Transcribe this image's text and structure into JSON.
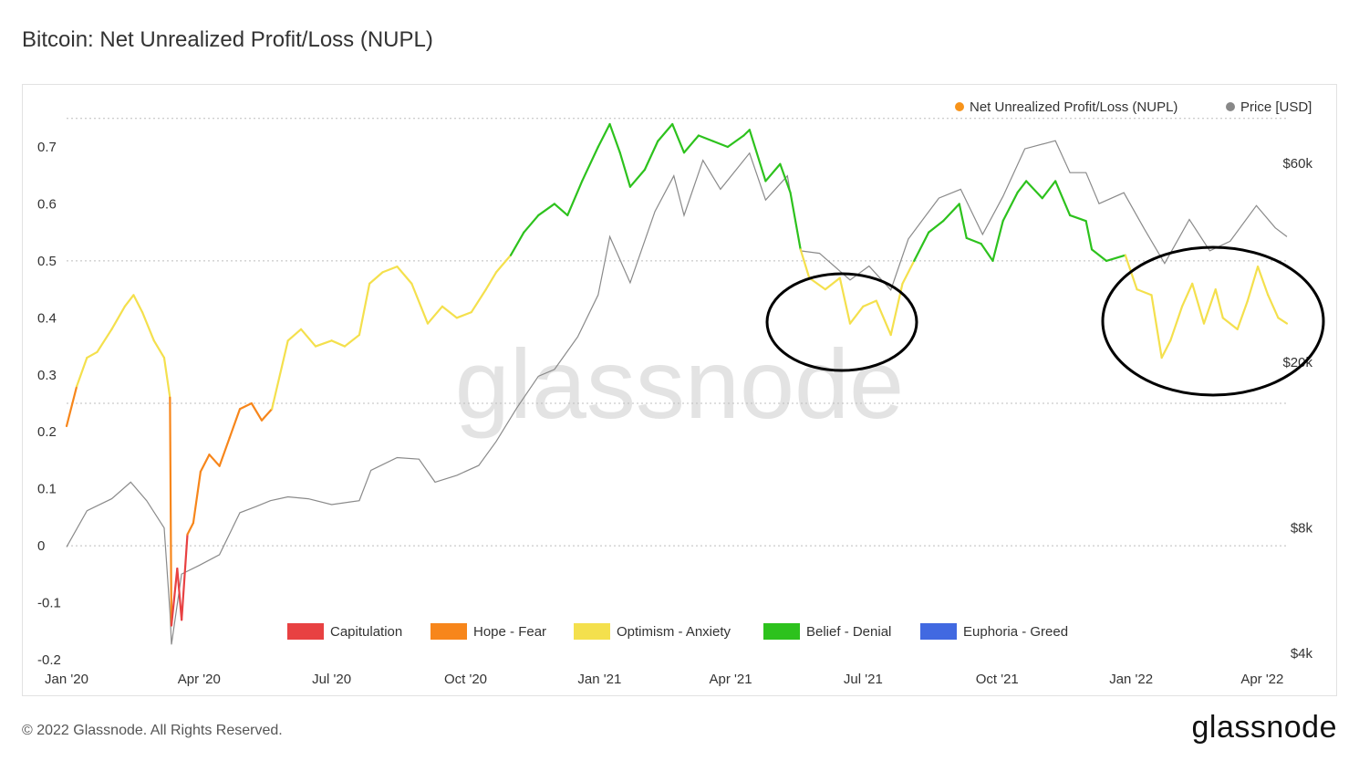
{
  "title": "Bitcoin: Net Unrealized Profit/Loss (NUPL)",
  "footer": "© 2022 Glassnode. All Rights Reserved.",
  "brand": "glassnode",
  "watermark": "glassnode",
  "chart_data": {
    "type": "line",
    "legend_top": [
      {
        "name": "Net Unrealized Profit/Loss (NUPL)",
        "color": "#f7931a"
      },
      {
        "name": "Price [USD]",
        "color": "#888888"
      }
    ],
    "legend_bottom": [
      {
        "name": "Capitulation",
        "color": "#e84142"
      },
      {
        "name": "Hope - Fear",
        "color": "#f7861b"
      },
      {
        "name": "Optimism - Anxiety",
        "color": "#f4e04d"
      },
      {
        "name": "Belief - Denial",
        "color": "#2dc21d"
      },
      {
        "name": "Euphoria - Greed",
        "color": "#4169e1"
      }
    ],
    "x_ticks": [
      "Jan '20",
      "Apr '20",
      "Jul '20",
      "Oct '20",
      "Jan '21",
      "Apr '21",
      "Jul '21",
      "Oct '21",
      "Jan '22",
      "Apr '22"
    ],
    "y_left_ticks": [
      "0.7",
      "0.6",
      "0.5",
      "0.4",
      "0.3",
      "0.2",
      "0.1",
      "0",
      "-0.1",
      "-0.2"
    ],
    "y_left_range": [
      -0.2,
      0.7
    ],
    "y_right_ticks": [
      "$60k",
      "$20k",
      "$8k",
      "$4k"
    ],
    "zone_thresholds": [
      0,
      0.25,
      0.5,
      0.75
    ],
    "nupl": [
      [
        "2020-01-01",
        0.21
      ],
      [
        "2020-01-08",
        0.28
      ],
      [
        "2020-01-15",
        0.33
      ],
      [
        "2020-01-22",
        0.34
      ],
      [
        "2020-02-01",
        0.38
      ],
      [
        "2020-02-10",
        0.42
      ],
      [
        "2020-02-16",
        0.44
      ],
      [
        "2020-02-22",
        0.41
      ],
      [
        "2020-03-01",
        0.36
      ],
      [
        "2020-03-08",
        0.33
      ],
      [
        "2020-03-12",
        0.26
      ],
      [
        "2020-03-13",
        -0.14
      ],
      [
        "2020-03-17",
        -0.04
      ],
      [
        "2020-03-20",
        -0.13
      ],
      [
        "2020-03-24",
        0.02
      ],
      [
        "2020-03-28",
        0.04
      ],
      [
        "2020-04-02",
        0.13
      ],
      [
        "2020-04-08",
        0.16
      ],
      [
        "2020-04-15",
        0.14
      ],
      [
        "2020-04-22",
        0.19
      ],
      [
        "2020-04-29",
        0.24
      ],
      [
        "2020-05-07",
        0.25
      ],
      [
        "2020-05-14",
        0.22
      ],
      [
        "2020-05-21",
        0.24
      ],
      [
        "2020-06-01",
        0.36
      ],
      [
        "2020-06-10",
        0.38
      ],
      [
        "2020-06-20",
        0.35
      ],
      [
        "2020-07-01",
        0.36
      ],
      [
        "2020-07-10",
        0.35
      ],
      [
        "2020-07-20",
        0.37
      ],
      [
        "2020-07-27",
        0.46
      ],
      [
        "2020-08-05",
        0.48
      ],
      [
        "2020-08-15",
        0.49
      ],
      [
        "2020-08-25",
        0.46
      ],
      [
        "2020-09-05",
        0.39
      ],
      [
        "2020-09-15",
        0.42
      ],
      [
        "2020-09-25",
        0.4
      ],
      [
        "2020-10-05",
        0.41
      ],
      [
        "2020-10-15",
        0.45
      ],
      [
        "2020-10-22",
        0.48
      ],
      [
        "2020-11-01",
        0.51
      ],
      [
        "2020-11-10",
        0.55
      ],
      [
        "2020-11-20",
        0.58
      ],
      [
        "2020-12-01",
        0.6
      ],
      [
        "2020-12-10",
        0.58
      ],
      [
        "2020-12-20",
        0.64
      ],
      [
        "2020-12-31",
        0.7
      ],
      [
        "2021-01-08",
        0.74
      ],
      [
        "2021-01-15",
        0.69
      ],
      [
        "2021-01-22",
        0.63
      ],
      [
        "2021-02-01",
        0.66
      ],
      [
        "2021-02-10",
        0.71
      ],
      [
        "2021-02-20",
        0.74
      ],
      [
        "2021-02-28",
        0.69
      ],
      [
        "2021-03-10",
        0.72
      ],
      [
        "2021-03-20",
        0.71
      ],
      [
        "2021-03-30",
        0.7
      ],
      [
        "2021-04-10",
        0.72
      ],
      [
        "2021-04-14",
        0.73
      ],
      [
        "2021-04-25",
        0.64
      ],
      [
        "2021-05-05",
        0.67
      ],
      [
        "2021-05-12",
        0.62
      ],
      [
        "2021-05-19",
        0.52
      ],
      [
        "2021-05-25",
        0.47
      ],
      [
        "2021-06-05",
        0.45
      ],
      [
        "2021-06-15",
        0.47
      ],
      [
        "2021-06-22",
        0.39
      ],
      [
        "2021-07-01",
        0.42
      ],
      [
        "2021-07-10",
        0.43
      ],
      [
        "2021-07-20",
        0.37
      ],
      [
        "2021-07-28",
        0.46
      ],
      [
        "2021-08-05",
        0.5
      ],
      [
        "2021-08-15",
        0.55
      ],
      [
        "2021-08-25",
        0.57
      ],
      [
        "2021-09-05",
        0.6
      ],
      [
        "2021-09-10",
        0.54
      ],
      [
        "2021-09-20",
        0.53
      ],
      [
        "2021-09-28",
        0.5
      ],
      [
        "2021-10-05",
        0.57
      ],
      [
        "2021-10-15",
        0.62
      ],
      [
        "2021-10-21",
        0.64
      ],
      [
        "2021-11-01",
        0.61
      ],
      [
        "2021-11-10",
        0.64
      ],
      [
        "2021-11-20",
        0.58
      ],
      [
        "2021-12-01",
        0.57
      ],
      [
        "2021-12-05",
        0.52
      ],
      [
        "2021-12-15",
        0.5
      ],
      [
        "2021-12-28",
        0.51
      ],
      [
        "2022-01-05",
        0.45
      ],
      [
        "2022-01-15",
        0.44
      ],
      [
        "2022-01-22",
        0.33
      ],
      [
        "2022-01-28",
        0.36
      ],
      [
        "2022-02-05",
        0.42
      ],
      [
        "2022-02-12",
        0.46
      ],
      [
        "2022-02-20",
        0.39
      ],
      [
        "2022-02-28",
        0.45
      ],
      [
        "2022-03-05",
        0.4
      ],
      [
        "2022-03-15",
        0.38
      ],
      [
        "2022-03-22",
        0.43
      ],
      [
        "2022-03-29",
        0.49
      ],
      [
        "2022-04-05",
        0.44
      ],
      [
        "2022-04-12",
        0.4
      ],
      [
        "2022-04-18",
        0.39
      ]
    ],
    "price": [
      [
        "2020-01-01",
        7200
      ],
      [
        "2020-01-15",
        8800
      ],
      [
        "2020-02-01",
        9400
      ],
      [
        "2020-02-14",
        10300
      ],
      [
        "2020-02-25",
        9300
      ],
      [
        "2020-03-08",
        8000
      ],
      [
        "2020-03-12",
        5000
      ],
      [
        "2020-03-13",
        4200
      ],
      [
        "2020-03-20",
        6200
      ],
      [
        "2020-04-01",
        6500
      ],
      [
        "2020-04-15",
        6900
      ],
      [
        "2020-04-29",
        8700
      ],
      [
        "2020-05-10",
        9000
      ],
      [
        "2020-05-20",
        9300
      ],
      [
        "2020-06-01",
        9500
      ],
      [
        "2020-06-15",
        9400
      ],
      [
        "2020-07-01",
        9100
      ],
      [
        "2020-07-20",
        9300
      ],
      [
        "2020-07-28",
        11000
      ],
      [
        "2020-08-15",
        11800
      ],
      [
        "2020-08-30",
        11700
      ],
      [
        "2020-09-10",
        10300
      ],
      [
        "2020-09-25",
        10700
      ],
      [
        "2020-10-10",
        11300
      ],
      [
        "2020-10-22",
        12900
      ],
      [
        "2020-11-05",
        15500
      ],
      [
        "2020-11-20",
        18500
      ],
      [
        "2020-12-01",
        19200
      ],
      [
        "2020-12-17",
        23000
      ],
      [
        "2020-12-31",
        29000
      ],
      [
        "2021-01-08",
        40000
      ],
      [
        "2021-01-22",
        31000
      ],
      [
        "2021-02-08",
        46000
      ],
      [
        "2021-02-21",
        56000
      ],
      [
        "2021-02-28",
        45000
      ],
      [
        "2021-03-13",
        61000
      ],
      [
        "2021-03-25",
        52000
      ],
      [
        "2021-04-14",
        63500
      ],
      [
        "2021-04-25",
        49000
      ],
      [
        "2021-05-10",
        56000
      ],
      [
        "2021-05-19",
        37000
      ],
      [
        "2021-06-01",
        36500
      ],
      [
        "2021-06-22",
        31500
      ],
      [
        "2021-07-05",
        34000
      ],
      [
        "2021-07-20",
        29800
      ],
      [
        "2021-08-01",
        39500
      ],
      [
        "2021-08-22",
        49500
      ],
      [
        "2021-09-06",
        52000
      ],
      [
        "2021-09-21",
        40500
      ],
      [
        "2021-10-05",
        50000
      ],
      [
        "2021-10-20",
        65000
      ],
      [
        "2021-11-10",
        68000
      ],
      [
        "2021-11-20",
        57000
      ],
      [
        "2021-12-01",
        57000
      ],
      [
        "2021-12-10",
        48000
      ],
      [
        "2021-12-27",
        51000
      ],
      [
        "2022-01-10",
        41800
      ],
      [
        "2022-01-24",
        34500
      ],
      [
        "2022-02-10",
        44000
      ],
      [
        "2022-02-24",
        37000
      ],
      [
        "2022-03-10",
        39000
      ],
      [
        "2022-03-28",
        47500
      ],
      [
        "2022-04-10",
        42000
      ],
      [
        "2022-04-18",
        40000
      ]
    ]
  }
}
